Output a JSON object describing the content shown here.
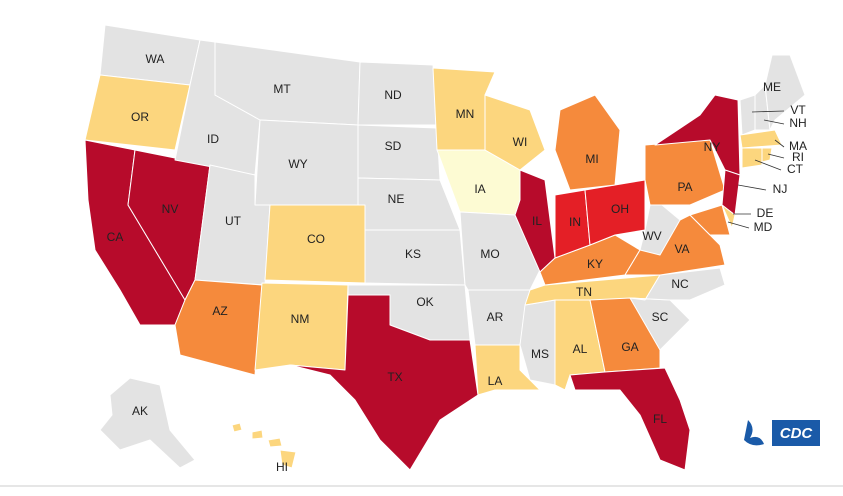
{
  "states": [
    {
      "label": "WA",
      "color": "#e3e3e3"
    },
    {
      "label": "OR",
      "color": "#fcd67e"
    },
    {
      "label": "CA",
      "color": "#b70b2b"
    },
    {
      "label": "NV",
      "color": "#b70b2b"
    },
    {
      "label": "ID",
      "color": "#e3e3e3"
    },
    {
      "label": "MT",
      "color": "#e3e3e3"
    },
    {
      "label": "WY",
      "color": "#e3e3e3"
    },
    {
      "label": "UT",
      "color": "#e3e3e3"
    },
    {
      "label": "CO",
      "color": "#fcd67e"
    },
    {
      "label": "AZ",
      "color": "#f58a3c"
    },
    {
      "label": "NM",
      "color": "#fcd67e"
    },
    {
      "label": "ND",
      "color": "#e3e3e3"
    },
    {
      "label": "SD",
      "color": "#e3e3e3"
    },
    {
      "label": "NE",
      "color": "#e3e3e3"
    },
    {
      "label": "KS",
      "color": "#e3e3e3"
    },
    {
      "label": "OK",
      "color": "#e3e3e3"
    },
    {
      "label": "TX",
      "color": "#b70b2b"
    },
    {
      "label": "MN",
      "color": "#fcd67e"
    },
    {
      "label": "IA",
      "color": "#fdfbd3"
    },
    {
      "label": "MO",
      "color": "#e3e3e3"
    },
    {
      "label": "AR",
      "color": "#e3e3e3"
    },
    {
      "label": "LA",
      "color": "#fcd67e"
    },
    {
      "label": "WI",
      "color": "#fcd67e"
    },
    {
      "label": "IL",
      "color": "#b70b2b"
    },
    {
      "label": "MS",
      "color": "#e3e3e3"
    },
    {
      "label": "AL",
      "color": "#fcd67e"
    },
    {
      "label": "TN",
      "color": "#fcd67e"
    },
    {
      "label": "KY",
      "color": "#f58a3c"
    },
    {
      "label": "IN",
      "color": "#e41f26"
    },
    {
      "label": "OH",
      "color": "#e41f26"
    },
    {
      "label": "MI",
      "color": "#f58a3c"
    },
    {
      "label": "GA",
      "color": "#f58a3c"
    },
    {
      "label": "FL",
      "color": "#b70b2b"
    },
    {
      "label": "SC",
      "color": "#e3e3e3"
    },
    {
      "label": "NC",
      "color": "#e3e3e3"
    },
    {
      "label": "VA",
      "color": "#f58a3c"
    },
    {
      "label": "WV",
      "color": "#e3e3e3"
    },
    {
      "label": "PA",
      "color": "#f58a3c"
    },
    {
      "label": "NY",
      "color": "#b70b2b"
    },
    {
      "label": "NJ",
      "color": "#b70b2b"
    },
    {
      "label": "MD",
      "color": "#f58a3c"
    },
    {
      "label": "DE",
      "color": "#fcd67e"
    },
    {
      "label": "VT",
      "color": "#e3e3e3"
    },
    {
      "label": "NH",
      "color": "#e3e3e3"
    },
    {
      "label": "ME",
      "color": "#e3e3e3"
    },
    {
      "label": "MA",
      "color": "#fcd67e"
    },
    {
      "label": "CT",
      "color": "#fcd67e"
    },
    {
      "label": "RI",
      "color": "#fcd67e"
    },
    {
      "label": "AK",
      "color": "#e3e3e3"
    },
    {
      "label": "HI",
      "color": "#fcd67e"
    }
  ],
  "logo": "CDC"
}
